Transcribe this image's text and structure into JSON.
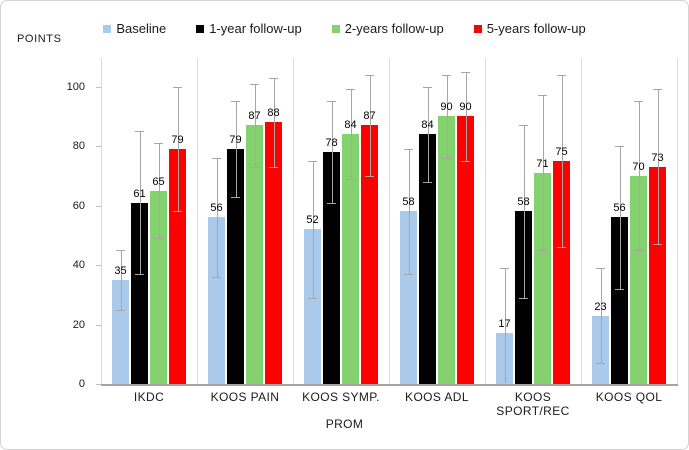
{
  "chart_data": {
    "type": "bar",
    "title": "",
    "xlabel": "PROM",
    "ylabel": "POINTS",
    "categories": [
      "IKDC",
      "KOOS PAIN",
      "KOOS SYMP.",
      "KOOS ADL",
      "KOOS SPORT/REC",
      "KOOS QOL"
    ],
    "series": [
      {
        "name": "Baseline",
        "color": "#a9caea",
        "values": [
          35,
          56,
          52,
          58,
          17,
          23
        ],
        "errors": [
          10,
          20,
          23,
          21,
          22,
          16
        ]
      },
      {
        "name": "1-year follow-up",
        "color": "#000000",
        "values": [
          61,
          79,
          78,
          84,
          58,
          56
        ],
        "errors": [
          24,
          16,
          17,
          16,
          29,
          24
        ]
      },
      {
        "name": "2-years follow-up",
        "color": "#85d170",
        "values": [
          65,
          87,
          84,
          90,
          71,
          70
        ],
        "errors": [
          16,
          14,
          15,
          14,
          26,
          25
        ]
      },
      {
        "name": "5-years follow-up",
        "color": "#fe0000",
        "values": [
          79,
          88,
          87,
          90,
          75,
          73
        ],
        "errors": [
          21,
          15,
          17,
          15,
          29,
          26
        ]
      }
    ],
    "yticks": [
      0,
      20,
      40,
      60,
      80,
      100
    ],
    "ylim": [
      0,
      105
    ],
    "grid": "vertical-group-separators-only",
    "legend_position": "top-center",
    "error_bars": true,
    "error_bar_color": "#a6a6a6"
  }
}
